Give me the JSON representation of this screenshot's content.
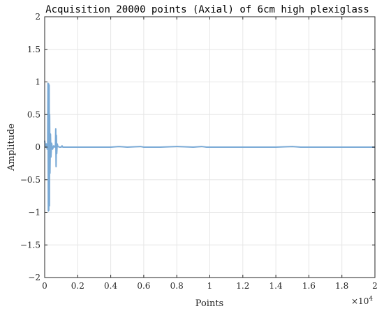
{
  "chart_data": {
    "type": "line",
    "title": "Acquisition 20000 points (Axial) of 6cm high plexiglass",
    "xlabel": "Points",
    "ylabel": "Amplitude",
    "x_exponent_label": "×10",
    "x_exponent_power": "4",
    "xlim": [
      0,
      20000
    ],
    "ylim": [
      -2,
      2
    ],
    "x_ticks": [
      0,
      2000,
      4000,
      6000,
      8000,
      10000,
      12000,
      14000,
      16000,
      18000,
      20000
    ],
    "x_tick_labels": [
      "0",
      "0.2",
      "0.4",
      "0.6",
      "0.8",
      "1",
      "1.2",
      "1.4",
      "1.6",
      "1.8",
      "2"
    ],
    "y_ticks": [
      -2,
      -1.5,
      -1,
      -0.5,
      0,
      0.5,
      1,
      1.5,
      2
    ],
    "y_tick_labels": [
      "−2",
      "−1.5",
      "−1",
      "−0.5",
      "0",
      "0.5",
      "1",
      "1.5",
      "2"
    ],
    "grid": true,
    "line_color": "#7aaad6",
    "series": [
      {
        "x": [
          0,
          50,
          100,
          150,
          180,
          200,
          220,
          240,
          250,
          270,
          290,
          300,
          320,
          350,
          380,
          420,
          480,
          550,
          620,
          650,
          670,
          690,
          710,
          730,
          760,
          800,
          900,
          1000,
          1050,
          1100,
          1200,
          1500,
          2000,
          3000,
          4000,
          4500,
          5000,
          5800,
          6000,
          7000,
          8000,
          9000,
          9500,
          9800,
          10000,
          11000,
          12000,
          13000,
          14000,
          15000,
          15500,
          16000,
          17000,
          18000,
          19000,
          19800,
          20000
        ],
        "values": [
          0.1,
          0.0,
          0.05,
          -0.03,
          0.0,
          0.98,
          -0.98,
          0.97,
          -0.97,
          0.95,
          -0.9,
          0.5,
          -0.4,
          0.2,
          -0.15,
          0.06,
          -0.03,
          0.02,
          0.0,
          0.0,
          0.28,
          -0.3,
          0.18,
          -0.1,
          0.05,
          0.01,
          0.0,
          0.0,
          0.02,
          0.0,
          0.0,
          0.0,
          0.0,
          0.0,
          0.0,
          0.01,
          0.0,
          0.01,
          0.0,
          0.0,
          0.01,
          0.0,
          0.01,
          0.0,
          0.0,
          0.0,
          0.0,
          0.0,
          0.0,
          0.01,
          0.0,
          0.0,
          0.0,
          0.0,
          0.0,
          0.0,
          0.0
        ]
      }
    ]
  }
}
